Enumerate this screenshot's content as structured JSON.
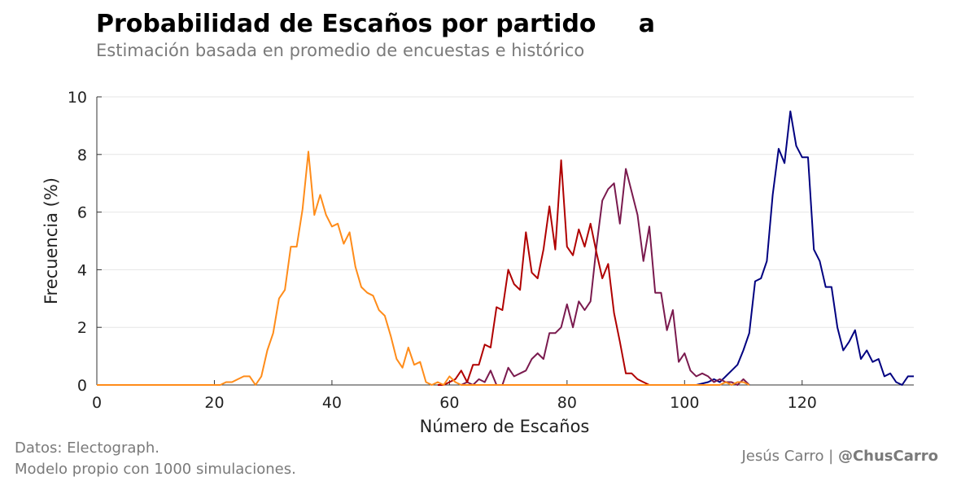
{
  "header": {
    "title": "Probabilidad de Escaños por partido     a",
    "subtitle": "Estimación basada en promedio de encuestas e histórico"
  },
  "footer": {
    "source_line1": "Datos: Electograph.",
    "source_line2": "Modelo propio con 1000 simulaciones.",
    "credit_name": "Jesús Carro | ",
    "credit_handle": "@ChusCarro"
  },
  "chart_data": {
    "type": "line",
    "title": "Probabilidad de Escaños por partido     a",
    "subtitle": "Estimación basada en promedio de encuestas e histórico",
    "xlabel": "Número de Escaños",
    "ylabel": "Frecuencia (%)",
    "xlim": [
      0,
      139
    ],
    "ylim": [
      0,
      10
    ],
    "xticks": [
      0,
      20,
      40,
      60,
      80,
      100,
      120
    ],
    "yticks": [
      0,
      2,
      4,
      6,
      8,
      10
    ],
    "grid": "horizontal",
    "series": [
      {
        "color": "#000080",
        "x": [
          100,
          102,
          104,
          105,
          106,
          107,
          108,
          109,
          110,
          111,
          112,
          113,
          114,
          115,
          116,
          117,
          118,
          119,
          120,
          121,
          122,
          123,
          124,
          125,
          126,
          127,
          128,
          129,
          130,
          131,
          132,
          133,
          134,
          135,
          136,
          137,
          138,
          139
        ],
        "y": [
          0,
          0,
          0.1,
          0.2,
          0.1,
          0.3,
          0.5,
          0.7,
          1.2,
          1.8,
          3.6,
          3.7,
          4.3,
          6.6,
          8.2,
          7.7,
          9.5,
          8.3,
          7.9,
          7.9,
          4.7,
          4.3,
          3.4,
          3.4,
          2.0,
          1.2,
          1.5,
          1.9,
          0.9,
          1.2,
          0.8,
          0.9,
          0.3,
          0.4,
          0.1,
          0.0,
          0.3,
          0.3
        ]
      },
      {
        "color": "#7a1a4e",
        "x": [
          62,
          63,
          64,
          65,
          66,
          67,
          68,
          69,
          70,
          71,
          72,
          73,
          74,
          75,
          76,
          77,
          78,
          79,
          80,
          81,
          82,
          83,
          84,
          85,
          86,
          87,
          88,
          89,
          90,
          91,
          92,
          93,
          94,
          95,
          96,
          97,
          98,
          99,
          100,
          101,
          102,
          103,
          104,
          105,
          106,
          107,
          108,
          109,
          110,
          111
        ],
        "y": [
          0,
          0.1,
          0,
          0.2,
          0.1,
          0.5,
          0,
          0,
          0.6,
          0.3,
          0.4,
          0.5,
          0.9,
          1.1,
          0.9,
          1.8,
          1.8,
          2.0,
          2.8,
          2.0,
          2.9,
          2.6,
          2.9,
          4.8,
          6.4,
          6.8,
          7.0,
          5.6,
          7.5,
          6.7,
          5.9,
          4.3,
          5.5,
          3.2,
          3.2,
          1.9,
          2.6,
          0.8,
          1.1,
          0.5,
          0.3,
          0.4,
          0.3,
          0.1,
          0.2,
          0.1,
          0.1,
          0,
          0.2,
          0
        ]
      },
      {
        "color": "#b00000",
        "x": [
          58,
          59,
          60,
          61,
          62,
          63,
          64,
          65,
          66,
          67,
          68,
          69,
          70,
          71,
          72,
          73,
          74,
          75,
          76,
          77,
          78,
          79,
          80,
          81,
          82,
          83,
          84,
          85,
          86,
          87,
          88,
          89,
          90,
          91,
          92,
          93,
          94,
          95,
          96
        ],
        "y": [
          0,
          0,
          0.1,
          0.2,
          0.5,
          0.1,
          0.7,
          0.7,
          1.4,
          1.3,
          2.7,
          2.6,
          4.0,
          3.5,
          3.3,
          5.3,
          3.9,
          3.7,
          4.7,
          6.2,
          4.7,
          7.8,
          4.8,
          4.5,
          5.4,
          4.8,
          5.6,
          4.6,
          3.7,
          4.2,
          2.5,
          1.5,
          0.4,
          0.4,
          0.2,
          0.1,
          0,
          0,
          0
        ]
      },
      {
        "color": "#ff8c1a",
        "x": [
          0,
          21,
          22,
          23,
          24,
          25,
          26,
          27,
          28,
          29,
          30,
          31,
          32,
          33,
          34,
          35,
          36,
          37,
          38,
          39,
          40,
          41,
          42,
          43,
          44,
          45,
          46,
          47,
          48,
          49,
          50,
          51,
          52,
          53,
          54,
          55,
          56,
          57,
          58,
          59,
          60,
          61,
          62,
          63,
          64,
          65,
          66,
          67,
          68,
          69,
          70,
          71,
          72,
          73,
          74,
          75,
          76,
          77,
          78,
          79,
          80,
          81,
          82,
          83,
          84,
          85,
          86,
          87,
          88,
          89,
          90,
          91,
          92,
          93,
          94,
          95,
          96,
          97,
          98,
          99,
          100,
          101,
          102,
          103,
          104,
          105,
          106,
          107,
          108,
          109,
          110,
          111
        ],
        "y": [
          0,
          0,
          0.1,
          0.1,
          0.2,
          0.3,
          0.3,
          0,
          0.3,
          1.2,
          1.8,
          3.0,
          3.3,
          4.8,
          4.8,
          6.1,
          8.1,
          5.9,
          6.6,
          5.9,
          5.5,
          5.6,
          4.9,
          5.3,
          4.1,
          3.4,
          3.2,
          3.1,
          2.6,
          2.4,
          1.7,
          0.9,
          0.6,
          1.3,
          0.7,
          0.8,
          0.1,
          0,
          0.1,
          0,
          0.3,
          0.1,
          0,
          0,
          0,
          0,
          0,
          0,
          0,
          0,
          0,
          0,
          0,
          0,
          0,
          0,
          0,
          0,
          0,
          0,
          0,
          0,
          0,
          0,
          0,
          0,
          0,
          0,
          0,
          0,
          0,
          0,
          0,
          0,
          0,
          0,
          0,
          0,
          0,
          0,
          0,
          0,
          0,
          0,
          0,
          0,
          0,
          0.1,
          0,
          0.1,
          0.1,
          0
        ]
      }
    ]
  }
}
